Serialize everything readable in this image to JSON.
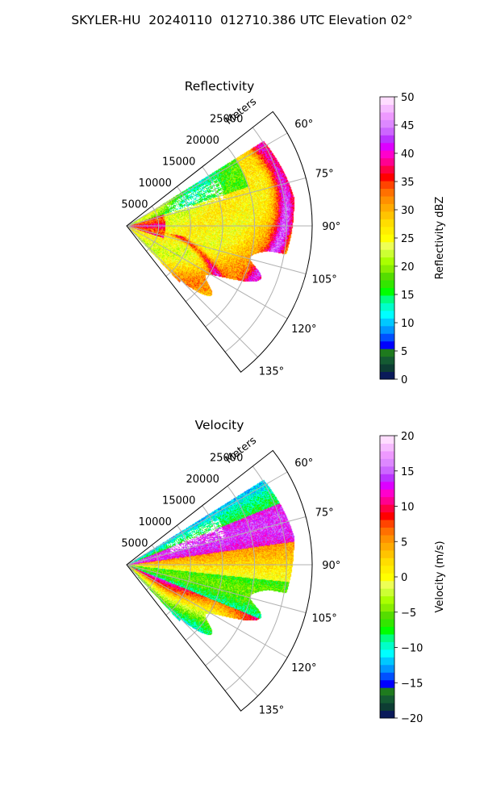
{
  "figure": {
    "suptitle": "SKYLER-HU  20240110  012710.386 UTC Elevation 02°"
  },
  "chart_data": [
    {
      "type": "heatmap",
      "title": "Reflectivity",
      "radial_label": "Meters",
      "r_ticks": [
        5000,
        10000,
        15000,
        20000,
        25000
      ],
      "r_tick_labels": [
        "5000",
        "10000",
        "15000",
        "20000",
        "25000"
      ],
      "theta_ticks": [
        60,
        75,
        90,
        105,
        120,
        135
      ],
      "theta_tick_labels": [
        "60°",
        "75°",
        "90°",
        "105°",
        "120°",
        "135°"
      ],
      "theta_range_deg": [
        52,
        142
      ],
      "r_max": 29000,
      "grid": true,
      "colorbar": {
        "label": "Reflectivity dBZ",
        "range": [
          0,
          50
        ],
        "ticks": [
          0,
          5,
          10,
          15,
          20,
          25,
          30,
          35,
          40,
          45,
          50
        ],
        "tick_labels": [
          "0",
          "5",
          "10",
          "15",
          "20",
          "25",
          "30",
          "35",
          "40",
          "45",
          "50"
        ],
        "colors": [
          "#0a1a5a",
          "#0d3d33",
          "#145a32",
          "#1e7a1e",
          "#0000ff",
          "#0050ff",
          "#0096ff",
          "#00c8ff",
          "#00ffff",
          "#00ffc8",
          "#00ff80",
          "#00ff00",
          "#33e600",
          "#55dd00",
          "#88ee00",
          "#aaff00",
          "#ccff33",
          "#eeff55",
          "#ffff00",
          "#ffee00",
          "#ffdd00",
          "#ffc400",
          "#ffaa00",
          "#ff9000",
          "#ff7000",
          "#ff4400",
          "#ff0000",
          "#ff0044",
          "#ff0090",
          "#ff00cc",
          "#dd00ff",
          "#bb33ff",
          "#cc66ff",
          "#dd88ff",
          "#ee99ff",
          "#f6bbff",
          "#ffddff"
        ]
      }
    },
    {
      "type": "heatmap",
      "title": "Velocity",
      "radial_label": "Meters",
      "r_ticks": [
        5000,
        10000,
        15000,
        20000,
        25000
      ],
      "r_tick_labels": [
        "5000",
        "10000",
        "15000",
        "20000",
        "25000"
      ],
      "theta_ticks": [
        60,
        75,
        90,
        105,
        120,
        135
      ],
      "theta_tick_labels": [
        "60°",
        "75°",
        "90°",
        "105°",
        "120°",
        "135°"
      ],
      "theta_range_deg": [
        52,
        142
      ],
      "r_max": 29000,
      "grid": true,
      "colorbar": {
        "label": "Velocity (m/s)",
        "range": [
          -20,
          20
        ],
        "ticks": [
          -20,
          -15,
          -10,
          -5,
          0,
          5,
          10,
          15,
          20
        ],
        "tick_labels": [
          "−20",
          "−15",
          "−10",
          "−5",
          "0",
          "5",
          "10",
          "15",
          "20"
        ],
        "colors": [
          "#0a1a5a",
          "#0d3d33",
          "#145a32",
          "#1e7a1e",
          "#0000ff",
          "#0050ff",
          "#0096ff",
          "#00c8ff",
          "#00ffff",
          "#00ffc8",
          "#00ff80",
          "#00ff00",
          "#33e600",
          "#55dd00",
          "#88ee00",
          "#aaff00",
          "#ccff33",
          "#eeff55",
          "#ffff00",
          "#ffee00",
          "#ffdd00",
          "#ffc400",
          "#ffaa00",
          "#ff9000",
          "#ff7000",
          "#ff4400",
          "#ff0000",
          "#ff0044",
          "#ff0090",
          "#ff00cc",
          "#dd00ff",
          "#bb33ff",
          "#cc66ff",
          "#dd88ff",
          "#ee99ff",
          "#f6bbff",
          "#ffddff"
        ]
      }
    }
  ]
}
